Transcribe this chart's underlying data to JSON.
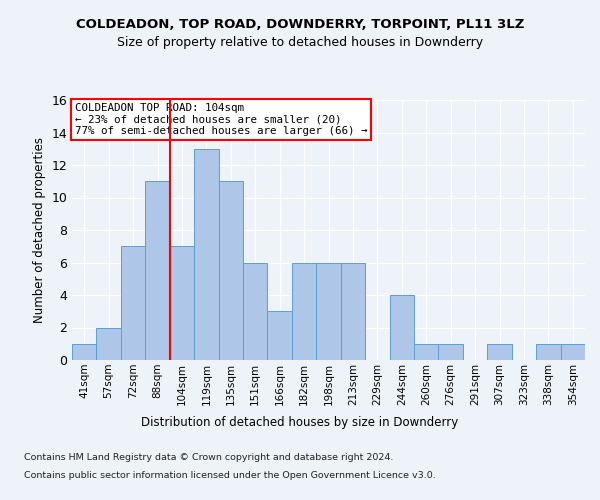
{
  "title1": "COLDEADON, TOP ROAD, DOWNDERRY, TORPOINT, PL11 3LZ",
  "title2": "Size of property relative to detached houses in Downderry",
  "xlabel": "Distribution of detached houses by size in Downderry",
  "ylabel": "Number of detached properties",
  "categories": [
    "41sqm",
    "57sqm",
    "72sqm",
    "88sqm",
    "104sqm",
    "119sqm",
    "135sqm",
    "151sqm",
    "166sqm",
    "182sqm",
    "198sqm",
    "213sqm",
    "229sqm",
    "244sqm",
    "260sqm",
    "276sqm",
    "291sqm",
    "307sqm",
    "323sqm",
    "338sqm",
    "354sqm"
  ],
  "values": [
    1,
    2,
    7,
    11,
    7,
    13,
    11,
    6,
    3,
    6,
    6,
    6,
    0,
    4,
    1,
    1,
    0,
    1,
    0,
    1,
    1
  ],
  "bar_color": "#aec6e8",
  "bar_edge_color": "#5a9fd4",
  "red_line_index": 4,
  "annotation_title": "COLDEADON TOP ROAD: 104sqm",
  "annotation_line1": "← 23% of detached houses are smaller (20)",
  "annotation_line2": "77% of semi-detached houses are larger (66) →",
  "ylim": [
    0,
    16
  ],
  "yticks": [
    0,
    2,
    4,
    6,
    8,
    10,
    12,
    14,
    16
  ],
  "footer1": "Contains HM Land Registry data © Crown copyright and database right 2024.",
  "footer2": "Contains public sector information licensed under the Open Government Licence v3.0.",
  "background_color": "#eef2f9",
  "plot_background": "#eef2f9"
}
